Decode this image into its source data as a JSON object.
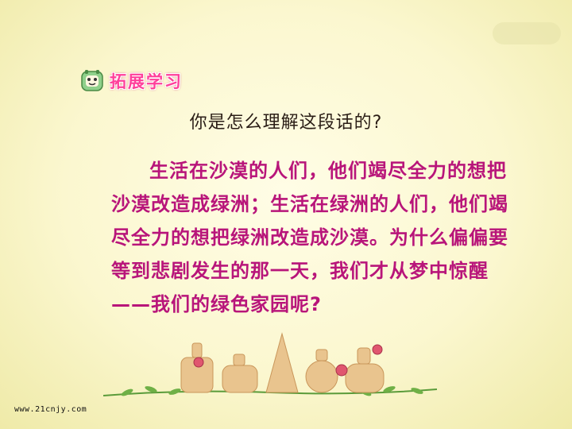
{
  "section": {
    "title": "拓展学习",
    "icon": "smiley-book-icon"
  },
  "question": "你是怎么理解这段话的?",
  "passage": "生活在沙漠的人们，他们竭尽全力的想把沙漠改造成绿洲；生活在绿洲的人们，他们竭尽全力的想把绿洲改造成沙漠。为什么偏偏要等到悲剧发生的那一天，我们才从梦中惊醒——我们的绿色家园呢?",
  "footer": {
    "url": "www.21cnjy.com"
  },
  "colors": {
    "title": "#ff3f9a",
    "passage": "#b8157a",
    "question": "#2a1d16"
  }
}
